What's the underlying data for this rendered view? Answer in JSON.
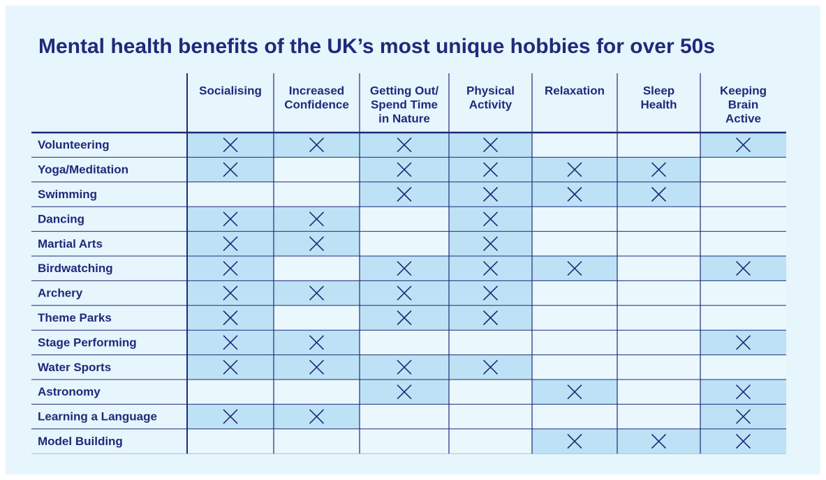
{
  "title": "Mental health benefits of the UK’s most unique hobbies for over 50s",
  "columns": [
    [
      "Socialising"
    ],
    [
      "Increased",
      "Confidence"
    ],
    [
      "Getting Out/",
      "Spend Time",
      "in Nature"
    ],
    [
      "Physical",
      "Activity"
    ],
    [
      "Relaxation"
    ],
    [
      "Sleep",
      "Health"
    ],
    [
      "Keeping",
      "Brain",
      "Active"
    ]
  ],
  "rows": [
    {
      "label": "Volunteering",
      "cells": [
        true,
        true,
        true,
        true,
        false,
        false,
        true
      ]
    },
    {
      "label": "Yoga/Meditation",
      "cells": [
        true,
        false,
        true,
        true,
        true,
        true,
        false
      ]
    },
    {
      "label": "Swimming",
      "cells": [
        false,
        false,
        true,
        true,
        true,
        true,
        false
      ]
    },
    {
      "label": "Dancing",
      "cells": [
        true,
        true,
        false,
        true,
        false,
        false,
        false
      ]
    },
    {
      "label": "Martial Arts",
      "cells": [
        true,
        true,
        false,
        true,
        false,
        false,
        false
      ]
    },
    {
      "label": "Birdwatching",
      "cells": [
        true,
        false,
        true,
        true,
        true,
        false,
        true
      ]
    },
    {
      "label": "Archery",
      "cells": [
        true,
        true,
        true,
        true,
        false,
        false,
        false
      ]
    },
    {
      "label": "Theme Parks",
      "cells": [
        true,
        false,
        true,
        true,
        false,
        false,
        false
      ]
    },
    {
      "label": "Stage Performing",
      "cells": [
        true,
        true,
        false,
        false,
        false,
        false,
        true
      ]
    },
    {
      "label": "Water Sports",
      "cells": [
        true,
        true,
        true,
        true,
        false,
        false,
        false
      ]
    },
    {
      "label": "Astronomy",
      "cells": [
        false,
        false,
        true,
        false,
        true,
        false,
        true
      ]
    },
    {
      "label": "Learning a Language",
      "cells": [
        true,
        true,
        false,
        false,
        false,
        false,
        true
      ]
    },
    {
      "label": "Model Building",
      "cells": [
        false,
        false,
        false,
        false,
        true,
        true,
        true
      ]
    }
  ]
}
